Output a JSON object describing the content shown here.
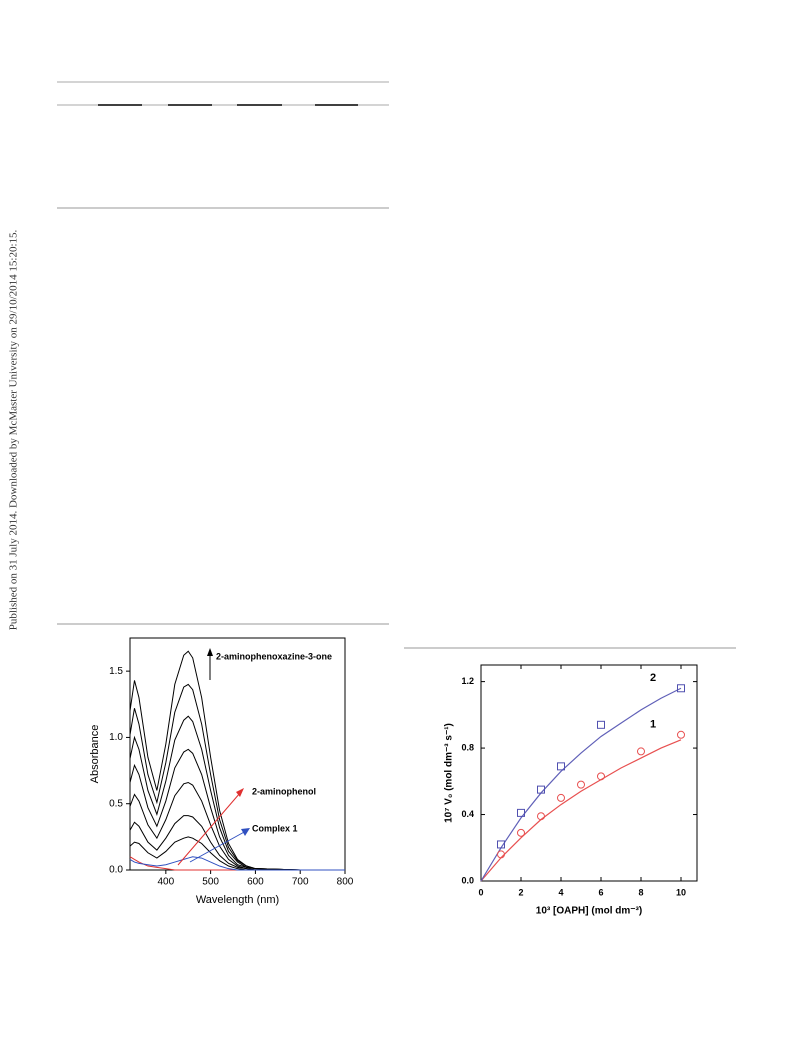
{
  "watermark": "Published on 31 July 2014. Downloaded by McMaster University on 29/10/2014 15:20:15.",
  "chart_data": [
    {
      "type": "line",
      "xlabel": "Wavelength (nm)",
      "ylabel": "Absorbance",
      "annotations": [
        "2-aminophenoxazine-3-one",
        "2-aminophenol",
        "Complex 1"
      ],
      "x": [
        320,
        330,
        340,
        360,
        380,
        400,
        420,
        440,
        450,
        460,
        480,
        500,
        520,
        540,
        560,
        580,
        600,
        700,
        800
      ],
      "xlim": [
        320,
        800
      ],
      "xticks": [
        400,
        500,
        600,
        700,
        800
      ],
      "ylim": [
        0,
        1.75
      ],
      "yticks": [
        {
          "value": 0,
          "label": "0.0"
        },
        0.5,
        {
          "value": 1,
          "label": "1.0"
        },
        1.5
      ],
      "series": [
        {
          "color": "#000000",
          "values": [
            1.2,
            1.43,
            1.3,
            0.85,
            0.6,
            0.95,
            1.4,
            1.62,
            1.65,
            1.6,
            1.3,
            0.85,
            0.45,
            0.2,
            0.08,
            0.03,
            0.01,
            0,
            0
          ]
        },
        {
          "color": "#000000",
          "values": [
            1.02,
            1.22,
            1.1,
            0.72,
            0.51,
            0.81,
            1.19,
            1.38,
            1.4,
            1.36,
            1.1,
            0.72,
            0.38,
            0.17,
            0.07,
            0.03,
            0.01,
            0,
            0
          ]
        },
        {
          "color": "#000000",
          "values": [
            0.84,
            1.0,
            0.91,
            0.6,
            0.42,
            0.67,
            0.98,
            1.13,
            1.16,
            1.12,
            0.91,
            0.6,
            0.32,
            0.14,
            0.06,
            0.02,
            0.01,
            0,
            0
          ]
        },
        {
          "color": "#000000",
          "values": [
            0.66,
            0.79,
            0.72,
            0.47,
            0.33,
            0.52,
            0.77,
            0.89,
            0.91,
            0.88,
            0.72,
            0.47,
            0.25,
            0.11,
            0.04,
            0.02,
            0.01,
            0,
            0
          ]
        },
        {
          "color": "#000000",
          "values": [
            0.48,
            0.57,
            0.52,
            0.34,
            0.24,
            0.38,
            0.56,
            0.65,
            0.66,
            0.64,
            0.52,
            0.34,
            0.18,
            0.08,
            0.03,
            0.01,
            0,
            0,
            0
          ]
        },
        {
          "color": "#000000",
          "values": [
            0.3,
            0.36,
            0.33,
            0.21,
            0.15,
            0.24,
            0.35,
            0.41,
            0.41,
            0.4,
            0.33,
            0.21,
            0.11,
            0.05,
            0.02,
            0.01,
            0,
            0,
            0
          ]
        },
        {
          "color": "#000000",
          "values": [
            0.18,
            0.21,
            0.2,
            0.13,
            0.09,
            0.14,
            0.21,
            0.24,
            0.25,
            0.24,
            0.2,
            0.13,
            0.07,
            0.03,
            0.01,
            0,
            0,
            0,
            0
          ]
        },
        {
          "color": "#e03030",
          "values": [
            0.1,
            0.08,
            0.06,
            0.03,
            0.02,
            0.01,
            0,
            0,
            0,
            0,
            0,
            0,
            0,
            0,
            0,
            0,
            0,
            0,
            0
          ]
        },
        {
          "color": "#3050c0",
          "values": [
            0.08,
            0.06,
            0.05,
            0.04,
            0.03,
            0.04,
            0.06,
            0.08,
            0.09,
            0.1,
            0.09,
            0.06,
            0.03,
            0.01,
            0,
            0,
            0,
            0,
            0
          ]
        }
      ]
    },
    {
      "type": "scatter",
      "xlabel": "10³ [OAPH] (mol dm⁻³)",
      "ylabel": "10⁷ V₀ (mol dm⁻³ s⁻¹)",
      "xlim": [
        0,
        10.8
      ],
      "xticks": [
        0,
        2,
        4,
        6,
        8,
        10
      ],
      "ylim": [
        0,
        1.3
      ],
      "yticks": [
        {
          "value": 0,
          "label": "0.0"
        },
        0.4,
        0.8,
        1.2
      ],
      "series": [
        {
          "name": "1",
          "color": "#e85050",
          "marker": "circle",
          "x": [
            1,
            2,
            3,
            4,
            5,
            6,
            8,
            10
          ],
          "values": [
            0.16,
            0.29,
            0.39,
            0.5,
            0.58,
            0.63,
            0.78,
            0.88
          ]
        },
        {
          "name": "2",
          "color": "#5050b0",
          "marker": "square",
          "x": [
            1,
            2,
            3,
            4,
            6,
            10
          ],
          "values": [
            0.22,
            0.41,
            0.55,
            0.69,
            0.94,
            1.16
          ]
        }
      ],
      "fits": [
        {
          "color": "#e85050",
          "x": [
            0,
            1,
            2,
            3,
            4,
            5,
            6,
            7,
            8,
            9,
            10
          ],
          "values": [
            0,
            0.14,
            0.26,
            0.37,
            0.46,
            0.54,
            0.61,
            0.68,
            0.74,
            0.8,
            0.85
          ]
        },
        {
          "color": "#6060b8",
          "x": [
            0,
            1,
            2,
            3,
            4,
            5,
            6,
            7,
            8,
            9,
            10
          ],
          "values": [
            0,
            0.2,
            0.38,
            0.53,
            0.66,
            0.77,
            0.87,
            0.95,
            1.03,
            1.1,
            1.16
          ]
        }
      ]
    }
  ]
}
